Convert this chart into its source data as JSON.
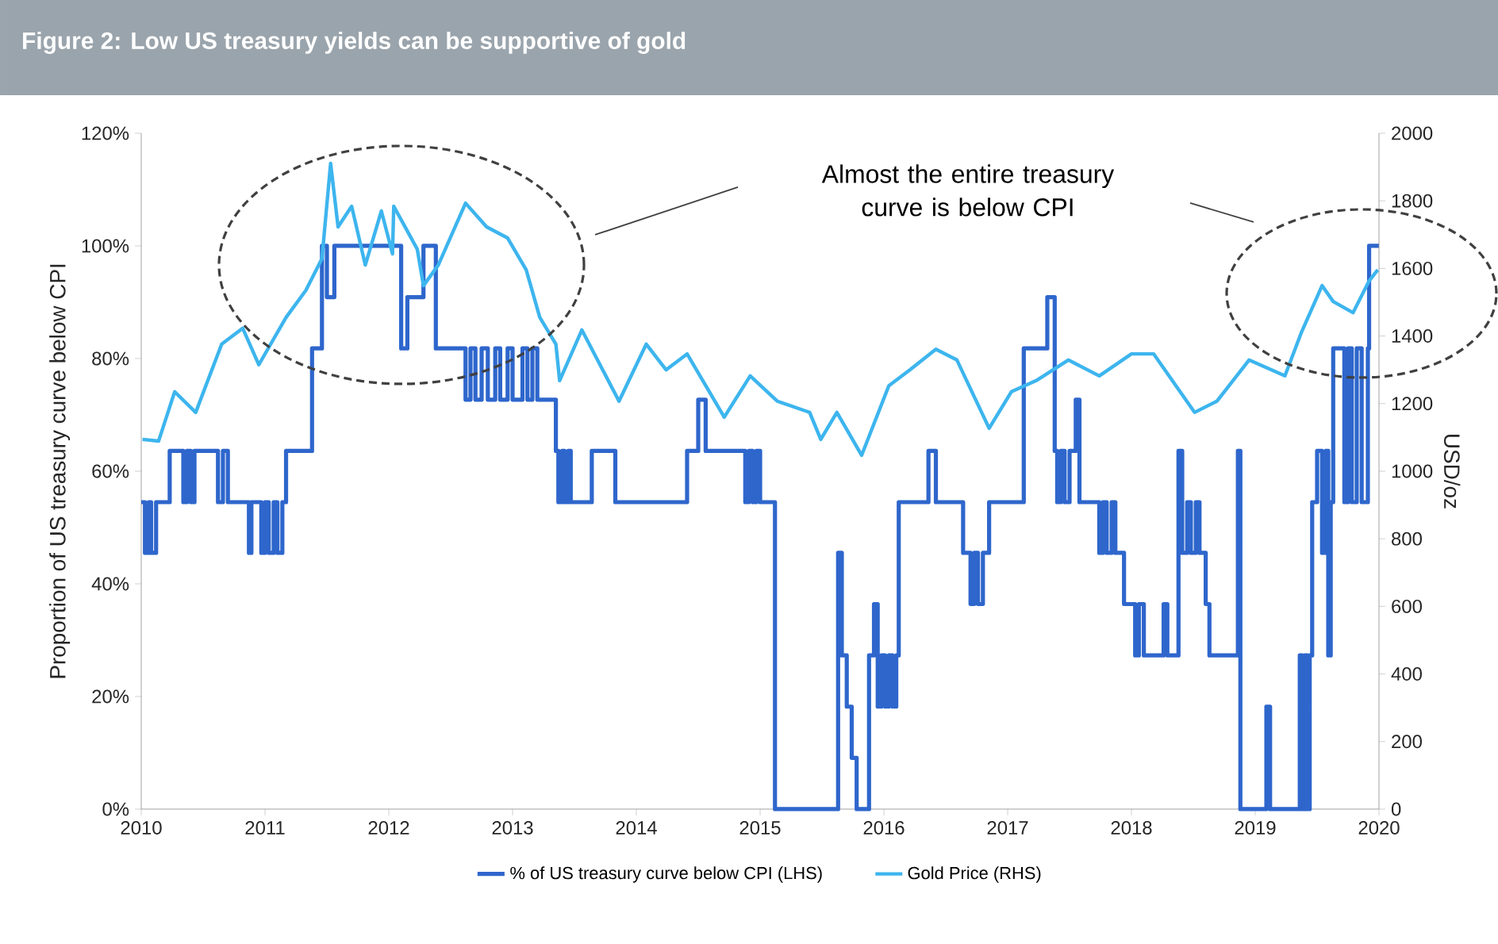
{
  "chart_data": {
    "type": "line",
    "title": "Figure 2: Low US treasury yields can be supportive of gold",
    "ylabel": "Proportion of US treasury curve below CPI",
    "y2label": "USD/oz",
    "annotations": [
      "Almost the entire treasury curve is below CPI"
    ],
    "xlim": [
      2010,
      2020
    ],
    "xticks": [
      2010,
      2011,
      2012,
      2013,
      2014,
      2015,
      2016,
      2017,
      2018,
      2019,
      2020
    ],
    "ylim": [
      0,
      120
    ],
    "yticks": [
      {
        "value": 0,
        "label": "0%"
      },
      {
        "value": 20,
        "label": "20%"
      },
      {
        "value": 40,
        "label": "40%"
      },
      {
        "value": 60,
        "label": "60%"
      },
      {
        "value": 80,
        "label": "80%"
      },
      {
        "value": 100,
        "label": "100%"
      },
      {
        "value": 120,
        "label": "120%"
      }
    ],
    "y2lim": [
      0,
      2000
    ],
    "y2ticks": [
      0,
      200,
      400,
      600,
      800,
      1000,
      1200,
      1400,
      1600,
      1800,
      2000
    ],
    "legend": "bottom",
    "marker": "none",
    "line_style": "solid",
    "series": [
      {
        "name": "% of US treasury curve below CPI (LHS)",
        "type": "step",
        "color": "#2e66cc",
        "x": [
          2010.0,
          2010.03,
          2010.06,
          2010.08,
          2010.12,
          2010.23,
          2010.34,
          2010.37,
          2010.4,
          2010.43,
          2010.62,
          2010.66,
          2010.7,
          2010.87,
          2010.89,
          2010.97,
          2011.0,
          2011.03,
          2011.07,
          2011.1,
          2011.14,
          2011.17,
          2011.38,
          2011.46,
          2011.5,
          2011.56,
          2012.1,
          2012.15,
          2012.28,
          2012.38,
          2012.62,
          2012.66,
          2012.7,
          2012.75,
          2012.8,
          2012.86,
          2012.9,
          2012.96,
          2013.0,
          2013.08,
          2013.12,
          2013.16,
          2013.2,
          2013.35,
          2013.37,
          2013.4,
          2013.42,
          2013.45,
          2013.47,
          2013.64,
          2013.83,
          2014.41,
          2014.5,
          2014.56,
          2014.88,
          2014.91,
          2014.94,
          2014.97,
          2015.0,
          2015.12,
          2015.63,
          2015.66,
          2015.7,
          2015.74,
          2015.78,
          2015.88,
          2015.92,
          2015.95,
          2015.98,
          2016.01,
          2016.04,
          2016.07,
          2016.1,
          2016.12,
          2016.36,
          2016.42,
          2016.64,
          2016.7,
          2016.73,
          2016.76,
          2016.8,
          2016.85,
          2017.13,
          2017.32,
          2017.38,
          2017.4,
          2017.43,
          2017.46,
          2017.5,
          2017.55,
          2017.58,
          2017.74,
          2017.77,
          2017.8,
          2017.84,
          2017.87,
          2017.94,
          2018.03,
          2018.06,
          2018.1,
          2018.26,
          2018.29,
          2018.38,
          2018.41,
          2018.45,
          2018.48,
          2018.52,
          2018.55,
          2018.6,
          2018.63,
          2018.86,
          2018.88,
          2019.09,
          2019.12,
          2019.36,
          2019.38,
          2019.4,
          2019.42,
          2019.44,
          2019.46,
          2019.5,
          2019.54,
          2019.57,
          2019.59,
          2019.61,
          2019.63,
          2019.72,
          2019.75,
          2019.78,
          2019.82,
          2019.86,
          2019.91,
          2019.92,
          2020.0
        ],
        "values": [
          54.5,
          45.5,
          54.5,
          45.5,
          54.5,
          63.6,
          54.5,
          63.6,
          54.5,
          63.6,
          54.5,
          63.6,
          54.5,
          45.5,
          54.5,
          45.5,
          54.5,
          45.5,
          54.5,
          45.5,
          54.5,
          63.6,
          81.8,
          100,
          90.9,
          100,
          81.8,
          90.9,
          100,
          81.8,
          72.7,
          81.8,
          72.7,
          81.8,
          72.7,
          81.8,
          72.7,
          81.8,
          72.7,
          81.8,
          72.7,
          81.8,
          72.7,
          63.6,
          54.5,
          63.6,
          54.5,
          63.6,
          54.5,
          63.6,
          54.5,
          63.6,
          72.7,
          63.6,
          54.5,
          63.6,
          54.5,
          63.6,
          54.5,
          0,
          45.5,
          27.3,
          18.2,
          9.1,
          0,
          27.3,
          36.4,
          18.2,
          27.3,
          18.2,
          27.3,
          18.2,
          27.3,
          54.5,
          63.6,
          54.5,
          45.5,
          36.4,
          45.5,
          36.4,
          45.5,
          54.5,
          81.8,
          90.9,
          63.6,
          54.5,
          63.6,
          54.5,
          63.6,
          72.7,
          54.5,
          45.5,
          54.5,
          45.5,
          54.5,
          45.5,
          36.4,
          27.3,
          36.4,
          27.3,
          36.4,
          27.3,
          63.6,
          45.5,
          54.5,
          45.5,
          54.5,
          45.5,
          36.4,
          27.3,
          63.6,
          0,
          18.2,
          0,
          27.3,
          0,
          27.3,
          0,
          27.3,
          54.5,
          63.6,
          45.5,
          63.6,
          27.3,
          54.5,
          81.8,
          54.5,
          81.8,
          54.5,
          81.8,
          54.5,
          81.8,
          100,
          100
        ]
      },
      {
        "name": "Gold Price (RHS)",
        "type": "line",
        "axis": "y2",
        "color": "#3db5ee",
        "x": [
          2010.01,
          2010.14,
          2010.27,
          2010.44,
          2010.65,
          2010.82,
          2010.95,
          2011.17,
          2011.33,
          2011.46,
          2011.53,
          2011.59,
          2011.7,
          2011.81,
          2011.94,
          2012.03,
          2012.04,
          2012.23,
          2012.28,
          2012.4,
          2012.62,
          2012.79,
          2012.96,
          2013.11,
          2013.22,
          2013.35,
          2013.38,
          2013.56,
          2013.86,
          2014.08,
          2014.24,
          2014.41,
          2014.71,
          2014.92,
          2015.14,
          2015.4,
          2015.49,
          2015.62,
          2015.82,
          2016.04,
          2016.21,
          2016.42,
          2016.59,
          2016.85,
          2017.03,
          2017.23,
          2017.49,
          2017.74,
          2018.0,
          2018.18,
          2018.51,
          2018.69,
          2018.95,
          2019.24,
          2019.37,
          2019.54,
          2019.63,
          2019.79,
          2019.92,
          2019.99
        ],
        "values": [
          1094,
          1089,
          1235,
          1174,
          1376,
          1423,
          1315,
          1455,
          1535,
          1629,
          1911,
          1723,
          1784,
          1610,
          1770,
          1643,
          1784,
          1657,
          1549,
          1610,
          1793,
          1723,
          1690,
          1596,
          1455,
          1376,
          1268,
          1418,
          1207,
          1376,
          1300,
          1347,
          1160,
          1282,
          1207,
          1174,
          1094,
          1174,
          1047,
          1253,
          1300,
          1361,
          1329,
          1127,
          1235,
          1268,
          1329,
          1282,
          1347,
          1347,
          1174,
          1207,
          1329,
          1282,
          1408,
          1549,
          1502,
          1469,
          1563,
          1596
        ]
      }
    ]
  }
}
